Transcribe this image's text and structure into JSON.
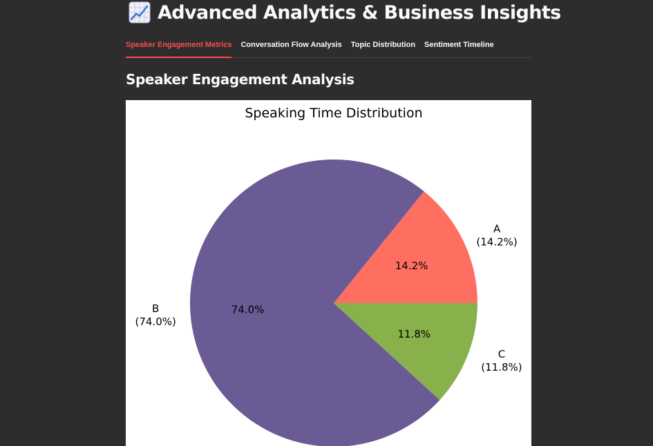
{
  "header": {
    "title": "Advanced Analytics & Business Insights",
    "icon": "chart-increasing-icon"
  },
  "tabs": [
    {
      "label": "Speaker Engagement Metrics",
      "active": true
    },
    {
      "label": "Conversation Flow Analysis",
      "active": false
    },
    {
      "label": "Topic Distribution",
      "active": false
    },
    {
      "label": "Sentiment Timeline",
      "active": false
    }
  ],
  "section": {
    "heading": "Speaker Engagement Analysis"
  },
  "colors": {
    "page_background": "#2d2d2d",
    "active_tab": "#ff4b4b",
    "slice_A": "#ff6f61",
    "slice_B": "#6b5b95",
    "slice_C": "#88b04b"
  },
  "chart_data": {
    "type": "pie",
    "title": "Speaking Time Distribution",
    "categories": [
      "A",
      "B",
      "C"
    ],
    "values": [
      14.2,
      74.0,
      11.8
    ],
    "autopct_labels": [
      "14.2%",
      "74.0%",
      "11.8%"
    ],
    "outer_labels": [
      {
        "name": "A",
        "pct": "(14.2%)"
      },
      {
        "name": "B",
        "pct": "(74.0%)"
      },
      {
        "name": "C",
        "pct": "(11.8%)"
      }
    ],
    "colors": [
      "#ff6f61",
      "#6b5b95",
      "#88b04b"
    ],
    "start_angle": 0,
    "direction": "counterclockwise"
  }
}
